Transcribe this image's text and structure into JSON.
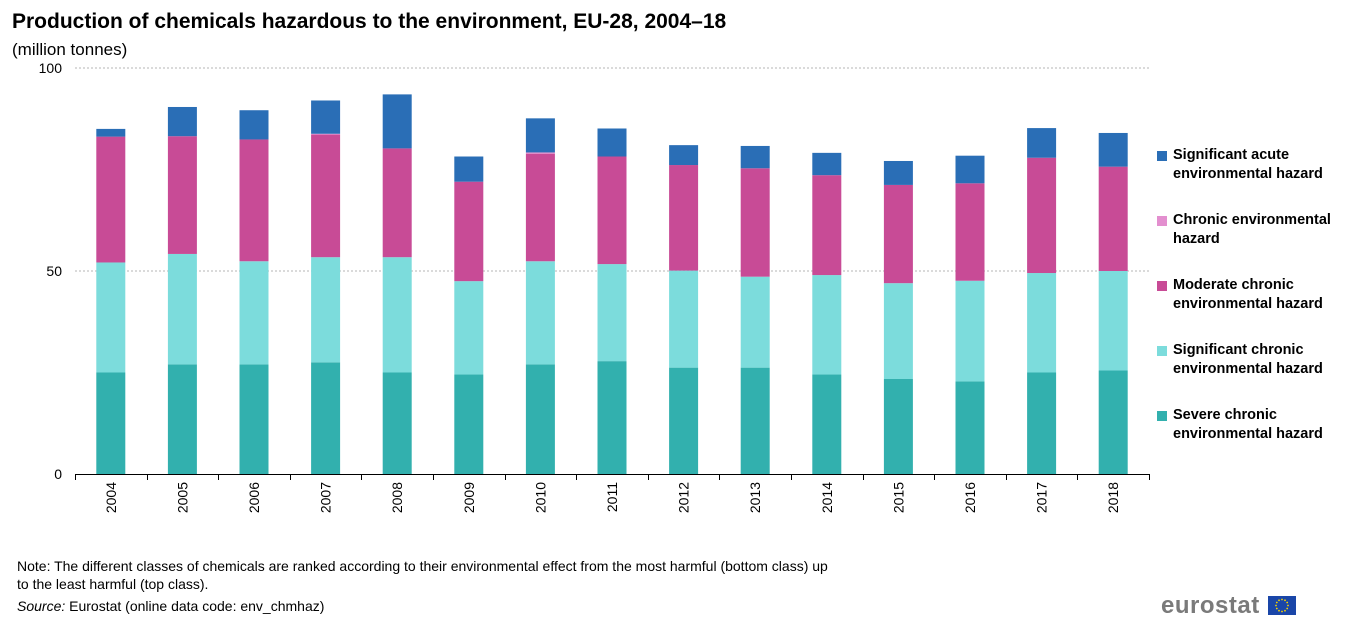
{
  "title": "Production of chemicals hazardous to the environment, EU-28, 2004–18",
  "subtitle": "(million tonnes)",
  "note": "Note: The different classes of chemicals are ranked according to their environmental  effect from the most harmful (bottom class) up to the least harmful (top class).",
  "source_label": "Source:",
  "source_text": " Eurostat (online data code: env_chmhaz)",
  "logo_text": "eurostat",
  "chart_data": {
    "type": "bar",
    "stacked": true,
    "categories": [
      "2004",
      "2005",
      "2006",
      "2007",
      "2008",
      "2009",
      "2010",
      "2011",
      "2012",
      "2013",
      "2014",
      "2015",
      "2016",
      "2017",
      "2018"
    ],
    "ylim": [
      0,
      100
    ],
    "yticks": [
      0,
      50,
      100
    ],
    "grid": true,
    "legend_position": "right",
    "series": [
      {
        "name": "Severe chronic environmental hazard",
        "color": "#32b0ae",
        "values": [
          25.0,
          27.0,
          27.0,
          27.5,
          25.0,
          24.5,
          27.0,
          27.8,
          26.2,
          26.2,
          24.5,
          23.4,
          22.8,
          25.0,
          25.5
        ]
      },
      {
        "name": "Significant chronic environmental hazard",
        "color": "#7cdcdc",
        "values": [
          27.1,
          27.2,
          25.4,
          25.9,
          28.4,
          23.0,
          25.4,
          23.9,
          23.9,
          22.4,
          24.5,
          23.6,
          24.8,
          24.5,
          24.5
        ]
      },
      {
        "name": "Moderate chronic environmental hazard",
        "color": "#c84b96",
        "values": [
          31.0,
          29.0,
          30.0,
          30.2,
          26.8,
          24.5,
          26.5,
          26.5,
          26.0,
          26.7,
          24.6,
          24.2,
          24.0,
          28.4,
          25.7
        ]
      },
      {
        "name": "Chronic environmental hazard",
        "color": "#e38fcf",
        "values": [
          0.0,
          0.0,
          0.0,
          0.2,
          0.0,
          0.0,
          0.3,
          0.0,
          0.0,
          0.0,
          0.0,
          0.0,
          0.0,
          0.0,
          0.0
        ]
      },
      {
        "name": "Significant acute environmental hazard",
        "color": "#2a6eb6",
        "values": [
          1.9,
          7.2,
          7.2,
          8.2,
          13.3,
          6.2,
          8.4,
          6.9,
          4.9,
          5.5,
          5.5,
          5.9,
          6.8,
          7.3,
          8.3
        ]
      }
    ]
  },
  "legend": [
    {
      "label": "Significant acute environmental hazard",
      "color": "#2a6eb6"
    },
    {
      "label": "Chronic environmental hazard",
      "color": "#e38fcf"
    },
    {
      "label": "Moderate chronic environmental hazard",
      "color": "#c84b96"
    },
    {
      "label": "Significant chronic environmental hazard",
      "color": "#7cdcdc"
    },
    {
      "label": "Severe chronic environmental hazard",
      "color": "#32b0ae"
    }
  ]
}
